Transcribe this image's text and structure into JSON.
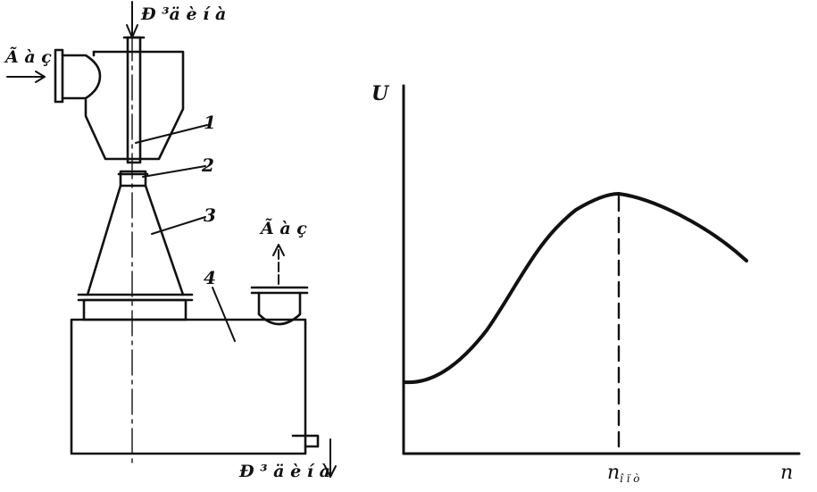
{
  "apparatus": {
    "liquid_in_top": "Ð ³ä è í à",
    "gas_in": "Ã à ç",
    "gas_out": "Ã à ç",
    "liquid_out_bottom": "Ð ³ ä è í à",
    "part_labels": [
      "1",
      "2",
      "3",
      "4"
    ]
  },
  "chart_data": {
    "type": "line",
    "ylabel": "U",
    "xlabel": "n",
    "x_marker_label": "n",
    "x_marker_subscript": "î ï ò",
    "shape": "curve rises from a low starting value, peaks at the marked n, then declines",
    "peak_marker": "dashed vertical line from peak down to x-axis"
  }
}
